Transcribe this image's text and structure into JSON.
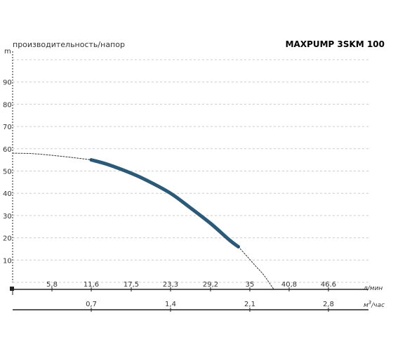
{
  "title": "производительность/напор",
  "model": "MAXPUMP 3SKM 100",
  "colors": {
    "curve": "#2b5a79",
    "model": "#2b5a79",
    "grid": "#cccccc",
    "axis": "#222222",
    "text": "#333333"
  },
  "chart_data": {
    "type": "line",
    "ylabel": "m",
    "ylim": [
      0,
      100
    ],
    "y_ticks": [
      "10",
      "20",
      "30",
      "40",
      "50",
      "60",
      "70",
      "80",
      "90"
    ],
    "grid": "horizontal dashed",
    "xaxis_primary": {
      "unit": "л/мин",
      "range": [
        0,
        52.5
      ],
      "ticks": [
        {
          "label": "5,8",
          "value": 5.8
        },
        {
          "label": "11,6",
          "value": 11.6
        },
        {
          "label": "17,5",
          "value": 17.5
        },
        {
          "label": "23,3",
          "value": 23.3
        },
        {
          "label": "29,2",
          "value": 29.2
        },
        {
          "label": "35",
          "value": 35
        },
        {
          "label": "40,8",
          "value": 40.8
        },
        {
          "label": "46.6",
          "value": 46.6
        }
      ]
    },
    "xaxis_secondary": {
      "unit": "м³/час",
      "unit_base": "м",
      "unit_sup": "3",
      "unit_rest": "/час",
      "ticks": [
        {
          "label": "0,7",
          "value": 11.6
        },
        {
          "label": "1,4",
          "value": 23.3
        },
        {
          "label": "2,1",
          "value": 35
        },
        {
          "label": "2,8",
          "value": 46.6
        }
      ]
    },
    "series": [
      {
        "style": "solid",
        "x": [
          11.6,
          14,
          17.5,
          20,
          23.3,
          26,
          29.2,
          32,
          33.3
        ],
        "y": [
          55,
          53,
          49,
          45.5,
          40,
          34,
          26.5,
          19,
          16
        ]
      },
      {
        "style": "dotted",
        "x": [
          0,
          3,
          6,
          9,
          11.6
        ],
        "y": [
          58,
          57.8,
          57,
          56,
          55
        ]
      },
      {
        "style": "dotted",
        "x": [
          33.3,
          34.5,
          35.8,
          37,
          38.5
        ],
        "y": [
          16,
          12,
          7.5,
          3.5,
          -3
        ]
      }
    ]
  }
}
